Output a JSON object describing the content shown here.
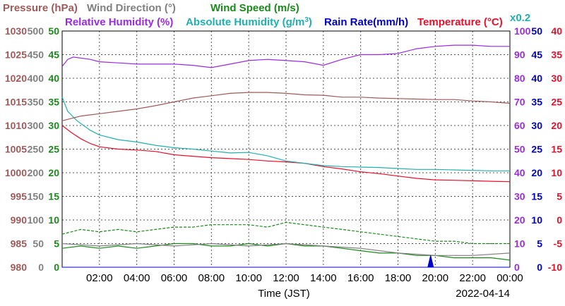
{
  "chart_data": {
    "type": "line",
    "title": "",
    "date": "2022-04-14",
    "xlabel": "Time (JST)",
    "x_range_hours": [
      0,
      24
    ],
    "x_ticks": [
      "02:00",
      "04:00",
      "06:00",
      "08:00",
      "10:00",
      "12:00",
      "14:00",
      "16:00",
      "18:00",
      "20:00",
      "22:00",
      "00:00"
    ],
    "grid": true,
    "axes": [
      {
        "name": "Pressure",
        "color": "#9e5a5a",
        "side": "left",
        "range": [
          980,
          1030
        ],
        "ticks": [
          "980",
          "985",
          "990",
          "995",
          "1000",
          "1005",
          "1010",
          "1015",
          "1020",
          "1025",
          "1030"
        ]
      },
      {
        "name": "Wind Direction",
        "color": "#808080",
        "side": "left",
        "range": [
          0,
          500
        ],
        "ticks": [
          "0",
          "50",
          "100",
          "150",
          "200",
          "250",
          "300",
          "350",
          "400",
          "450",
          "500"
        ]
      },
      {
        "name": "Wind Speed",
        "color": "#1a8a1a",
        "side": "left",
        "range": [
          0,
          50
        ],
        "ticks": [
          "0",
          "5",
          "10",
          "15",
          "20",
          "25",
          "30",
          "35",
          "40",
          "45",
          "50"
        ]
      },
      {
        "name": "Relative Humidity",
        "color": "#9a2be2",
        "side": "right",
        "range": [
          0,
          100
        ],
        "ticks": [
          "0",
          "10",
          "20",
          "30",
          "40",
          "50",
          "60",
          "70",
          "80",
          "90",
          "100"
        ]
      },
      {
        "name": "Rain Rate",
        "color": "#0000cc",
        "side": "right",
        "range": [
          0,
          50
        ],
        "ticks": [
          "0",
          "5",
          "10",
          "15",
          "20",
          "25",
          "30",
          "35",
          "40",
          "45",
          "50"
        ]
      },
      {
        "name": "Temperature",
        "color": "#e8102a",
        "side": "right",
        "range": [
          -10,
          40
        ],
        "ticks": [
          "-10",
          "-5",
          "0",
          "5",
          "10",
          "15",
          "20",
          "25",
          "30",
          "35",
          "40"
        ]
      }
    ],
    "legend": [
      {
        "label": "Pressure (hPa)",
        "color": "#9e5a5a"
      },
      {
        "label": "Wind Direction (°)",
        "color": "#808080"
      },
      {
        "label": "Wind Speed (m/s)",
        "color": "#1a8a1a"
      },
      {
        "label": "Relative Humidity (%)",
        "color": "#9a2be2"
      },
      {
        "label": "Absolute Humidity (g/m³)",
        "color": "#20b0b0"
      },
      {
        "label": "Rain Rate(mm/h)",
        "color": "#0000cc"
      },
      {
        "label": "Temperature (°C)",
        "color": "#e8102a"
      },
      {
        "label": "x0.2",
        "color": "#20b0b0"
      }
    ],
    "series": [
      {
        "name": "Temperature",
        "axis": "Temperature",
        "color": "#e8102a",
        "x": [
          0,
          0.5,
          1,
          1.5,
          2,
          3,
          4,
          5,
          6,
          7,
          8,
          9,
          10,
          11,
          12,
          13,
          14,
          15,
          16,
          17,
          18,
          19,
          20,
          21,
          22,
          23,
          24
        ],
        "y": [
          20,
          18.5,
          17.2,
          16.2,
          15.5,
          15,
          14.8,
          14.5,
          13.8,
          13.5,
          13.2,
          13,
          12.8,
          12.5,
          12.3,
          12,
          11.3,
          10.8,
          10.2,
          9.8,
          9.3,
          8.8,
          8.5,
          8.4,
          8.3,
          8.2,
          8.1
        ]
      },
      {
        "name": "Relative Humidity",
        "axis": "Relative Humidity",
        "color": "#9a2be2",
        "x": [
          0,
          0.3,
          0.6,
          1.5,
          2,
          3,
          4,
          5,
          6,
          7,
          8,
          9,
          10,
          11,
          12,
          13,
          14,
          15,
          16,
          17,
          18,
          19,
          20,
          21,
          22,
          23,
          24
        ],
        "y": [
          85,
          88,
          89,
          88,
          87,
          86.5,
          86,
          86,
          86,
          85.5,
          84.5,
          86,
          87.5,
          88,
          87.5,
          87,
          85.5,
          88,
          90,
          90,
          90.5,
          92.5,
          93.5,
          94,
          94,
          93.5,
          93.5
        ]
      },
      {
        "name": "Absolute Humidity x0.2",
        "axis": "Rain Rate",
        "color": "#20b0b0",
        "x": [
          0,
          0.3,
          0.8,
          1.5,
          2,
          3,
          4,
          5,
          6,
          7,
          8,
          9,
          10,
          11,
          12,
          13,
          14,
          15,
          16,
          17,
          18,
          19,
          20,
          21,
          22,
          23,
          24
        ],
        "y": [
          36,
          33,
          31,
          29,
          28,
          27,
          26.5,
          25.8,
          25.3,
          25,
          24.6,
          24.2,
          24.3,
          23.6,
          22.5,
          22,
          21.5,
          21.3,
          21.2,
          21.1,
          20.9,
          20.7,
          20.7,
          20.6,
          20.5,
          20.4,
          20.4
        ]
      },
      {
        "name": "Pressure",
        "axis": "Pressure",
        "color": "#9e5a5a",
        "x": [
          0,
          1,
          2,
          3,
          4,
          5,
          6,
          7,
          8,
          9,
          10,
          11,
          12,
          13,
          14,
          15,
          16,
          17,
          18,
          19,
          20,
          21,
          22,
          23,
          24
        ],
        "y": [
          1011,
          1012,
          1012.5,
          1013,
          1013.5,
          1014.2,
          1015,
          1015.8,
          1016.3,
          1016.8,
          1017,
          1017,
          1016.8,
          1016.5,
          1016.4,
          1016,
          1016,
          1015.8,
          1015.7,
          1015.6,
          1015.5,
          1015.5,
          1015.2,
          1015,
          1014.7
        ]
      },
      {
        "name": "Wind Speed (max)",
        "axis": "Wind Speed",
        "color": "#1a8a1a",
        "style": "dashed",
        "x": [
          0,
          1,
          2,
          3,
          4,
          5,
          6,
          7,
          8,
          9,
          10,
          11,
          12,
          13,
          14,
          15,
          16,
          17,
          18,
          19,
          20,
          21,
          22,
          23,
          24
        ],
        "y": [
          7,
          8,
          7.5,
          8,
          7.5,
          8,
          8.5,
          8.5,
          9,
          9,
          9,
          8.5,
          9.5,
          9,
          8.5,
          8,
          7.5,
          7,
          6.5,
          6,
          5.5,
          5.5,
          5,
          5,
          5
        ]
      },
      {
        "name": "Wind Speed (avg)",
        "axis": "Wind Speed",
        "color": "#1a8a1a",
        "x": [
          0,
          1,
          2,
          3,
          4,
          5,
          6,
          7,
          8,
          9,
          10,
          11,
          12,
          13,
          14,
          15,
          16,
          17,
          18,
          19,
          20,
          21,
          22,
          23,
          24
        ],
        "y": [
          4,
          4.5,
          4,
          4.5,
          4,
          4.5,
          5,
          5,
          4.5,
          4.5,
          5,
          4.5,
          5,
          4.5,
          4.5,
          4,
          3.5,
          3,
          3,
          2.5,
          2.5,
          2,
          2,
          2,
          1.5
        ]
      },
      {
        "name": "Wind Direction",
        "axis": "Wind Direction",
        "color": "#808080",
        "x": [
          0,
          2,
          4,
          6,
          8,
          10,
          12,
          14,
          16,
          18,
          20,
          22,
          24
        ],
        "y": [
          50,
          45,
          50,
          45,
          50,
          45,
          50,
          45,
          40,
          30,
          25,
          25,
          30
        ]
      },
      {
        "name": "Rain Rate",
        "axis": "Rain Rate",
        "color": "#0000cc",
        "x": [
          0,
          19.6,
          19.75,
          19.9,
          24
        ],
        "y": [
          0,
          0,
          2.5,
          0,
          0
        ]
      }
    ]
  }
}
